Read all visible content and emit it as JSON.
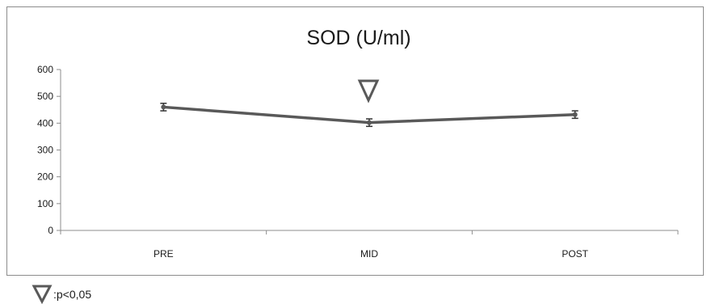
{
  "chart_data": {
    "type": "line",
    "title": "SOD (U/ml)",
    "xlabel": "",
    "ylabel": "",
    "categories": [
      "PRE",
      "MID",
      "POST"
    ],
    "series": [
      {
        "values": [
          460,
          402,
          432
        ],
        "error": [
          14,
          14,
          14
        ],
        "color": "#595959"
      }
    ],
    "ylim": [
      0,
      600
    ],
    "yticks": [
      0,
      100,
      200,
      300,
      400,
      500,
      600
    ],
    "grid": false,
    "annotations": [
      {
        "category": "MID",
        "symbol": "▽",
        "meaning": "p<0,05"
      }
    ],
    "legend": {
      "placement": "bottom-left",
      "symbol": "▽",
      "text": ":p<0,05"
    }
  }
}
